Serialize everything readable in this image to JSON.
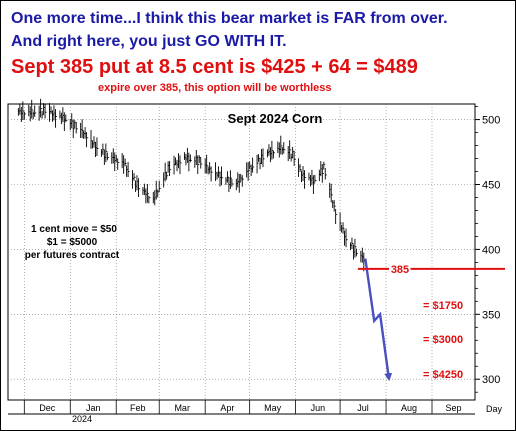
{
  "header": {
    "line1": "One more time...I think this bear market is FAR from over.",
    "line2": "And right here, you just GO WITH IT.",
    "line3": "Sept 385 put at 8.5 cent is $425 + 64 = $489",
    "line4": "expire over 385, this option will be worthless"
  },
  "colors": {
    "header_blue": "#1a1aa6",
    "highlight_red": "#e01010",
    "projection_blue": "#4a50c0",
    "price_bars": "#000000"
  },
  "chart_data": {
    "type": "line",
    "title": "Sept 2024 Corn",
    "xlabel": "",
    "ylabel": "",
    "x_axis_unit_label": "Day",
    "x_ticks": [
      "Dec",
      "Jan",
      "Feb",
      "Mar",
      "Apr",
      "May",
      "Jun",
      "Jul",
      "Aug",
      "Sep"
    ],
    "x_year_label": "2024",
    "y_ticks": [
      300,
      350,
      400,
      450,
      500
    ],
    "ylim": [
      284,
      512
    ],
    "grid": true,
    "series": [
      {
        "name": "",
        "style": "daily price bars",
        "x": [
          "2023-11-27",
          "2023-12-05",
          "2023-12-15",
          "2023-12-29",
          "2024-01-10",
          "2024-01-17",
          "2024-01-26",
          "2024-02-06",
          "2024-02-16",
          "2024-02-26",
          "2024-03-07",
          "2024-03-18",
          "2024-03-28",
          "2024-04-08",
          "2024-04-22",
          "2024-05-01",
          "2024-05-13",
          "2024-05-23",
          "2024-05-30",
          "2024-06-05",
          "2024-06-13",
          "2024-06-20",
          "2024-06-28",
          "2024-07-05",
          "2024-07-12",
          "2024-07-18"
        ],
        "values": [
          506,
          505,
          507,
          500,
          490,
          480,
          472,
          466,
          448,
          438,
          462,
          470,
          468,
          458,
          450,
          462,
          474,
          478,
          473,
          458,
          452,
          463,
          428,
          408,
          398,
          391
        ]
      },
      {
        "name": "",
        "style": "projection arrow",
        "x": [
          "2024-07-18",
          "2024-07-24",
          "2024-07-28",
          "2024-08-03"
        ],
        "values": [
          393,
          345,
          350,
          300
        ]
      }
    ],
    "annotations": [
      {
        "text": "385",
        "y": 385,
        "kind": "horizontal line"
      },
      {
        "text": "= $1750",
        "y": 357
      },
      {
        "text": "= $3000",
        "y": 331
      },
      {
        "text": "= $4250",
        "y": 304
      }
    ],
    "notes": [
      "1 cent move = $50",
      "$1 = $5000",
      "per futures contract"
    ]
  }
}
